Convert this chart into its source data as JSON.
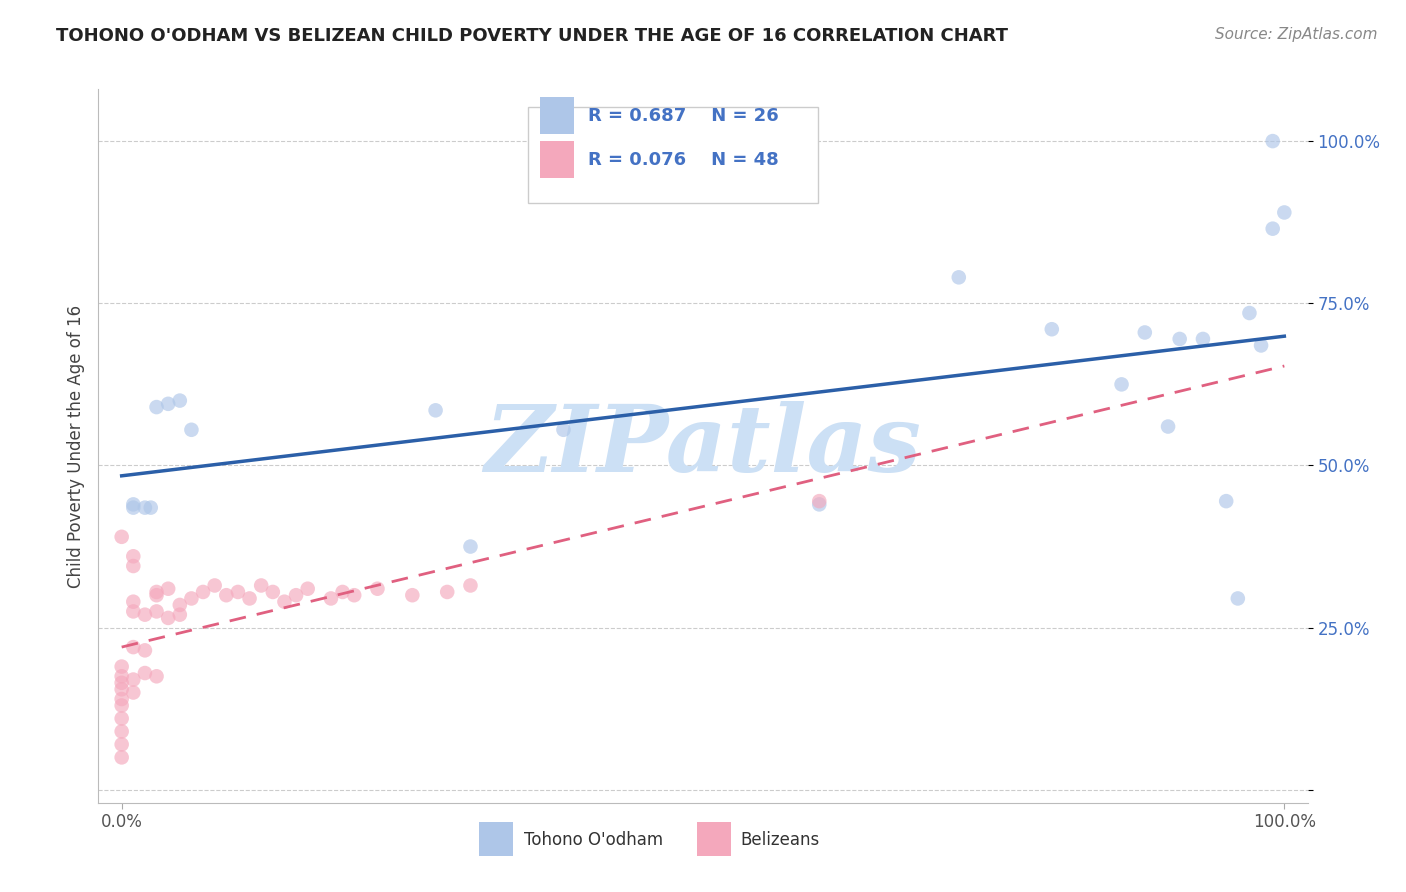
{
  "title": "TOHONO O'ODHAM VS BELIZEAN CHILD POVERTY UNDER THE AGE OF 16 CORRELATION CHART",
  "source": "Source: ZipAtlas.com",
  "ylabel": "Child Poverty Under the Age of 16",
  "xlim": [
    -0.02,
    1.02
  ],
  "ylim": [
    -0.02,
    1.08
  ],
  "x_ticks": [
    0,
    1
  ],
  "x_tick_labels": [
    "0.0%",
    "100.0%"
  ],
  "y_ticks": [
    0.0,
    0.25,
    0.5,
    0.75,
    1.0
  ],
  "y_tick_labels": [
    "",
    "25.0%",
    "50.0%",
    "75.0%",
    "100.0%"
  ],
  "grid_color": "#cccccc",
  "background_color": "#ffffff",
  "tohono_color": "#aec6e8",
  "belizean_color": "#f4a8bc",
  "tohono_line_color": "#2b5fa8",
  "belizean_line_color": "#e06080",
  "R_tohono": 0.687,
  "N_tohono": 26,
  "R_belizean": 0.076,
  "N_belizean": 48,
  "tohono_x": [
    0.01,
    0.01,
    0.02,
    0.025,
    0.03,
    0.04,
    0.05,
    0.06,
    0.27,
    0.3,
    0.38,
    0.6,
    0.72,
    0.8,
    0.86,
    0.88,
    0.9,
    0.91,
    0.93,
    0.95,
    0.96,
    0.97,
    0.98,
    0.99,
    0.99,
    1.0
  ],
  "tohono_y": [
    0.435,
    0.44,
    0.435,
    0.435,
    0.59,
    0.595,
    0.6,
    0.555,
    0.585,
    0.375,
    0.555,
    0.44,
    0.79,
    0.71,
    0.625,
    0.705,
    0.56,
    0.695,
    0.695,
    0.445,
    0.295,
    0.735,
    0.685,
    1.0,
    0.865,
    0.89
  ],
  "belizean_x": [
    0.0,
    0.0,
    0.0,
    0.0,
    0.0,
    0.0,
    0.0,
    0.0,
    0.0,
    0.0,
    0.0,
    0.01,
    0.01,
    0.01,
    0.01,
    0.01,
    0.01,
    0.01,
    0.02,
    0.02,
    0.02,
    0.03,
    0.03,
    0.03,
    0.03,
    0.04,
    0.04,
    0.05,
    0.05,
    0.06,
    0.07,
    0.08,
    0.09,
    0.1,
    0.11,
    0.12,
    0.13,
    0.14,
    0.15,
    0.16,
    0.18,
    0.19,
    0.2,
    0.22,
    0.25,
    0.28,
    0.3,
    0.6
  ],
  "belizean_y": [
    0.05,
    0.07,
    0.09,
    0.11,
    0.13,
    0.14,
    0.155,
    0.165,
    0.175,
    0.19,
    0.39,
    0.15,
    0.17,
    0.22,
    0.275,
    0.29,
    0.345,
    0.36,
    0.18,
    0.215,
    0.27,
    0.175,
    0.275,
    0.3,
    0.305,
    0.265,
    0.31,
    0.27,
    0.285,
    0.295,
    0.305,
    0.315,
    0.3,
    0.305,
    0.295,
    0.315,
    0.305,
    0.29,
    0.3,
    0.31,
    0.295,
    0.305,
    0.3,
    0.31,
    0.3,
    0.305,
    0.315,
    0.445
  ],
  "marker_size": 110,
  "marker_alpha": 0.65,
  "watermark_text": "ZIPatlas",
  "watermark_color": "#cce0f5",
  "watermark_fontsize": 68
}
